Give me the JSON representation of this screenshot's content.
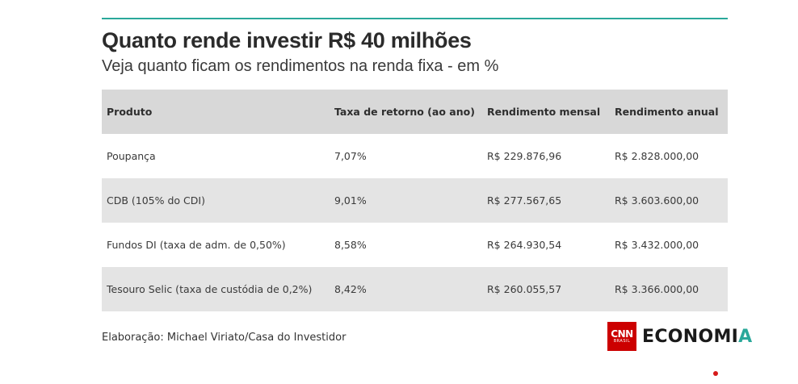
{
  "header": {
    "title": "Quanto rende investir R$ 40 milhões",
    "subtitle": "Veja quanto ficam os rendimentos na renda fixa - em %"
  },
  "table": {
    "columns": [
      "Produto",
      "Taxa de retorno (ao ano)",
      "Rendimento mensal",
      "Rendimento anual"
    ],
    "rows": [
      [
        "Poupança",
        "7,07%",
        "R$ 229.876,96",
        "R$ 2.828.000,00"
      ],
      [
        "CDB (105% do CDI)",
        "9,01%",
        "R$ 277.567,65",
        "R$ 3.603.600,00"
      ],
      [
        "Fundos DI (taxa de adm. de 0,50%)",
        "8,58%",
        "R$ 264.930,54",
        "R$ 3.432.000,00"
      ],
      [
        "Tesouro Selic (taxa de custódia de 0,2%)",
        "8,42%",
        "R$ 260.055,57",
        "R$ 3.366.000,00"
      ]
    ]
  },
  "footer": {
    "source": "Elaboração: Michael Viriato/Casa do Investidor",
    "logo": {
      "mark_text": "CNN",
      "mark_subtext": "BRASIL",
      "word_main": "ECONOMI",
      "word_accent": "A"
    }
  },
  "colors": {
    "accent": "#2aa89a",
    "header_row": "#d8d8d8",
    "stripe_row": "#e4e4e4",
    "logo_red": "#cc0000"
  }
}
